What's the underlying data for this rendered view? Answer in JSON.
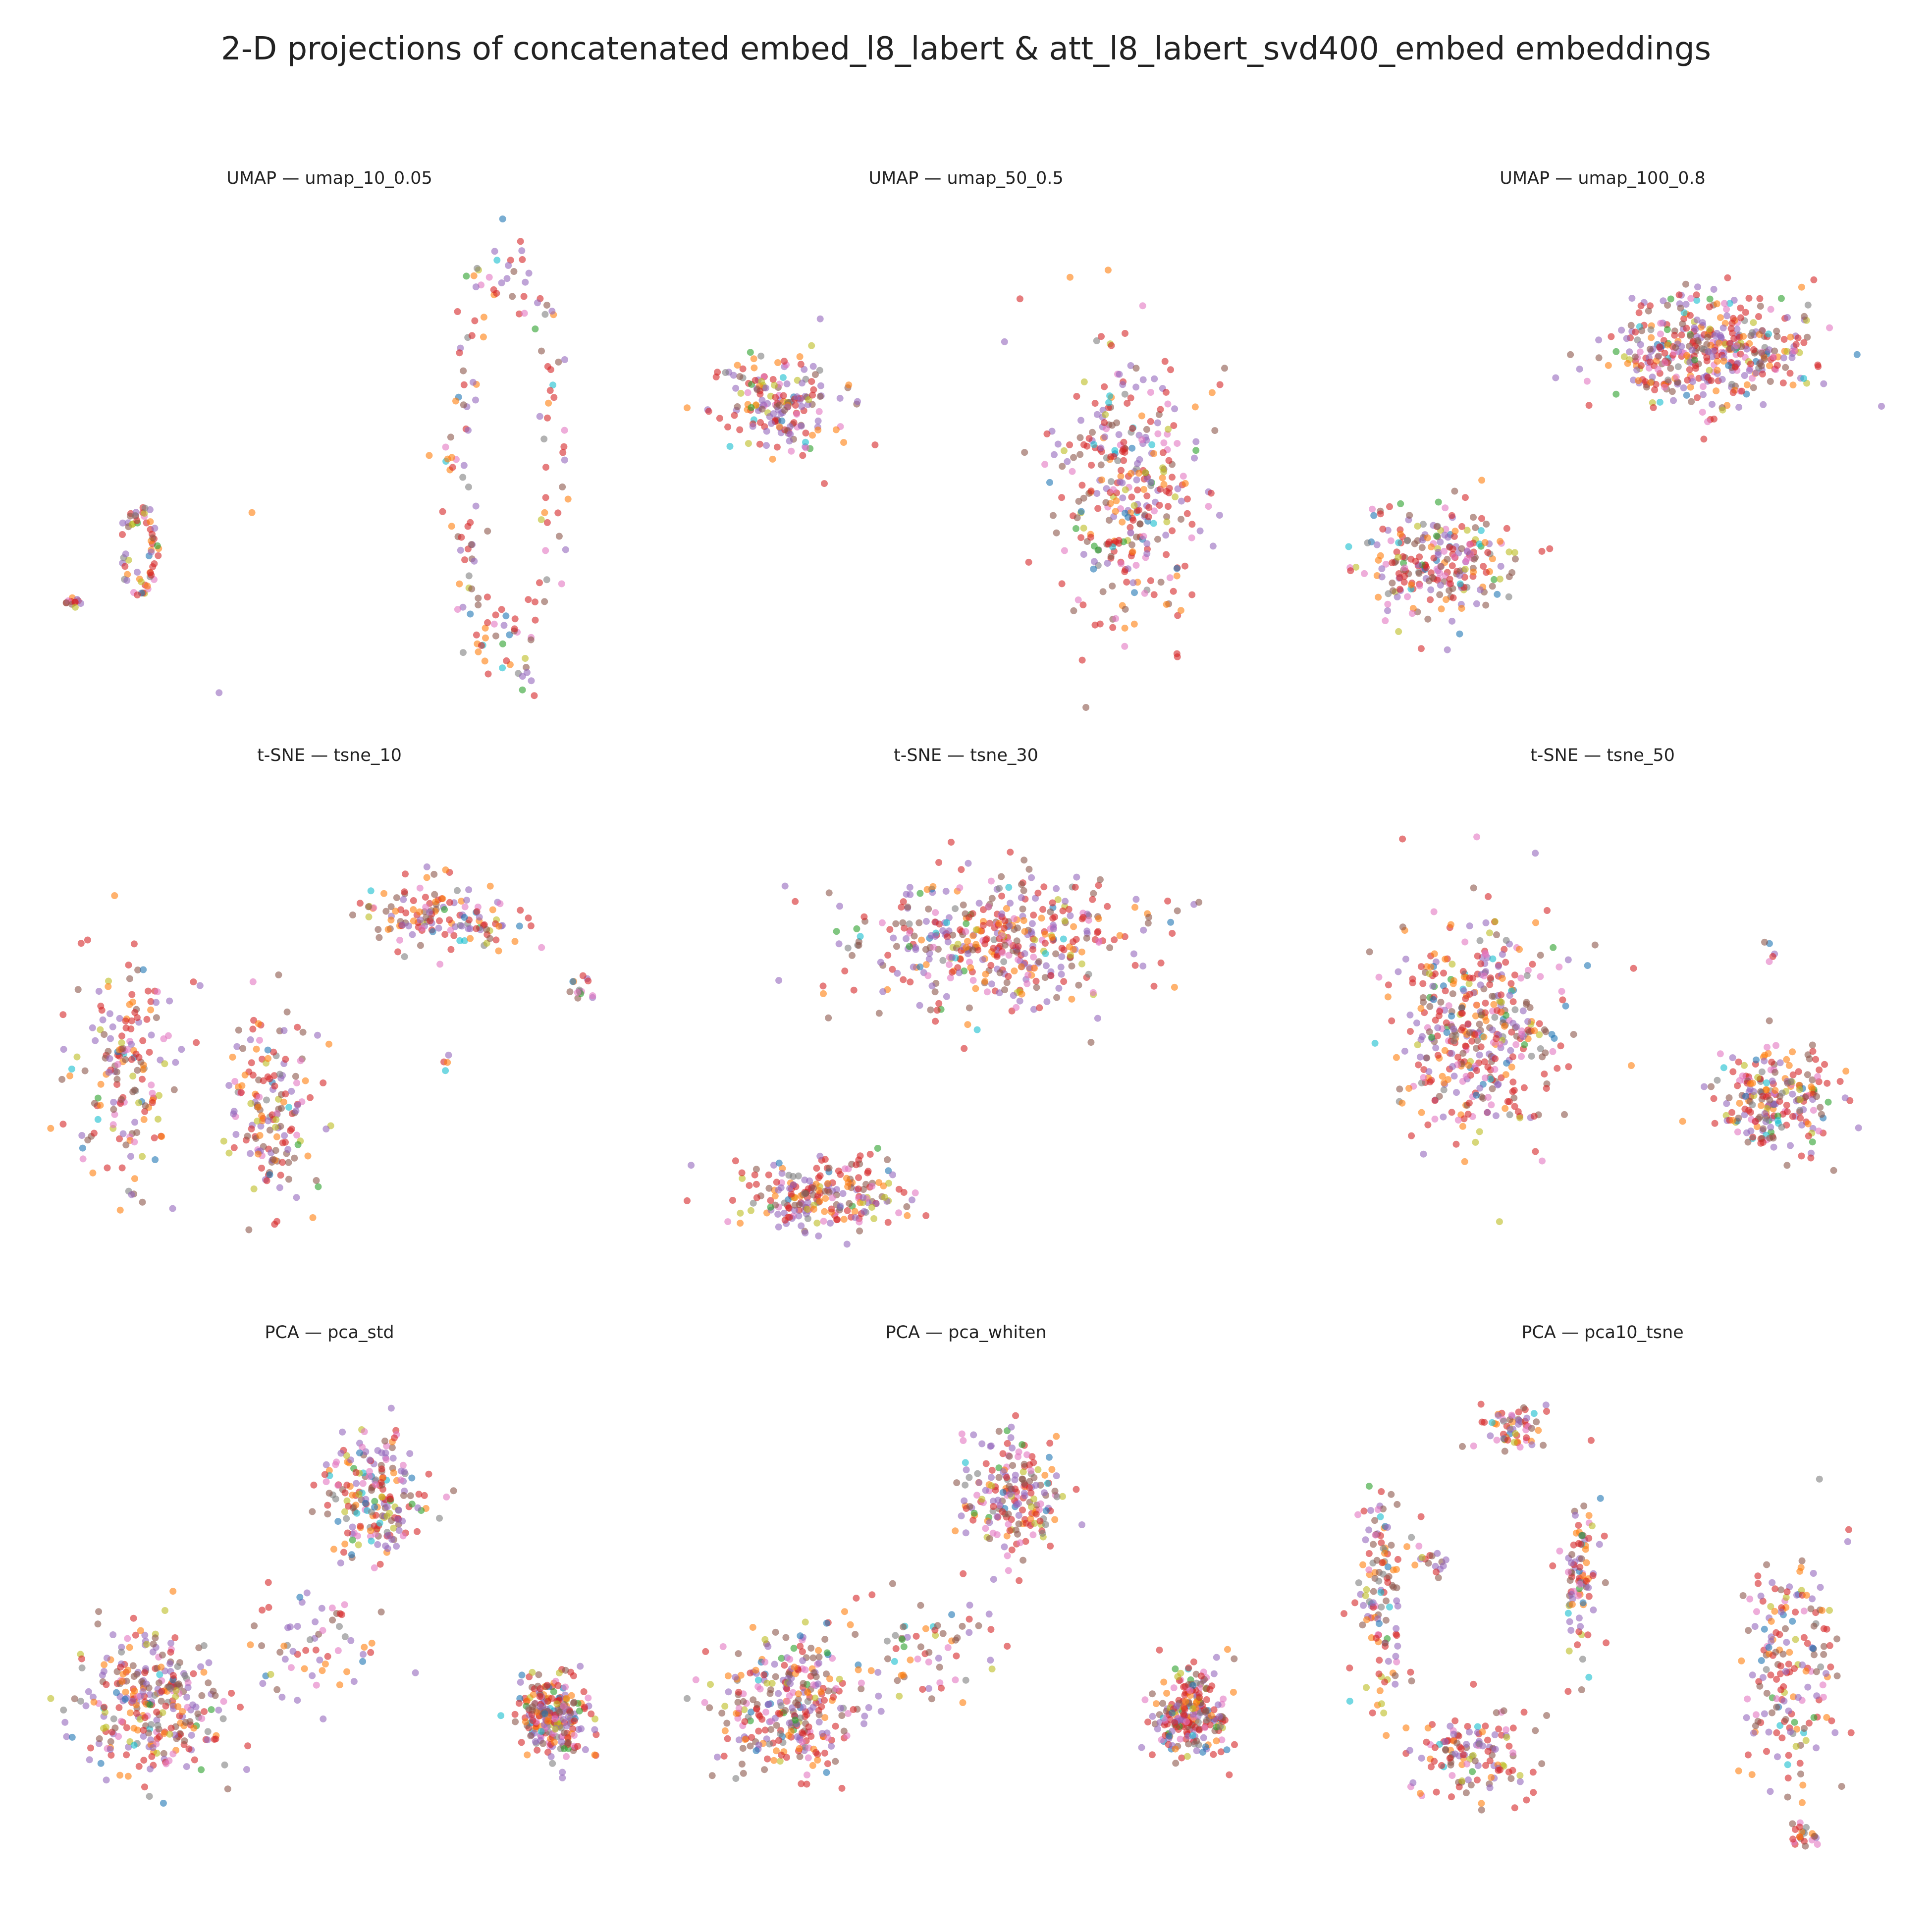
{
  "suptitle": "2-D projections of concatenated embed_l8_labert & att_l8_labert_svd400_embed embeddings",
  "palette": [
    "#1f77b4",
    "#ff7f0e",
    "#2ca02c",
    "#d62728",
    "#9467bd",
    "#8c564b",
    "#e377c2",
    "#7f7f7f",
    "#bcbd22",
    "#17becf"
  ],
  "chart_data": [
    {
      "type": "scatter",
      "title": "UMAP — umap_10_0.05",
      "axes_visible": false,
      "grid": false,
      "clusters": [
        {
          "cx": 0.16,
          "cy": 0.68,
          "sx": 0.03,
          "sy": 0.09,
          "n": 60,
          "shape": "ring"
        },
        {
          "cx": 0.04,
          "cy": 0.78,
          "sx": 0.015,
          "sy": 0.015,
          "n": 12,
          "shape": "blob"
        },
        {
          "cx": 0.82,
          "cy": 0.5,
          "sx": 0.1,
          "sy": 0.45,
          "n": 160,
          "shape": "ring"
        },
        {
          "cx": 0.36,
          "cy": 0.6,
          "sx": 0.005,
          "sy": 0.005,
          "n": 1,
          "shape": "blob"
        },
        {
          "cx": 0.3,
          "cy": 0.97,
          "sx": 0.005,
          "sy": 0.005,
          "n": 1,
          "shape": "blob"
        }
      ]
    },
    {
      "type": "scatter",
      "title": "UMAP — umap_50_0.5",
      "axes_visible": false,
      "grid": false,
      "clusters": [
        {
          "cx": 0.17,
          "cy": 0.38,
          "sx": 0.1,
          "sy": 0.09,
          "n": 180,
          "shape": "blob"
        },
        {
          "cx": 0.79,
          "cy": 0.55,
          "sx": 0.12,
          "sy": 0.25,
          "n": 340,
          "shape": "blob"
        }
      ]
    },
    {
      "type": "scatter",
      "title": "UMAP — umap_100_0.8",
      "axes_visible": false,
      "grid": false,
      "clusters": [
        {
          "cx": 0.7,
          "cy": 0.27,
          "sx": 0.16,
          "sy": 0.1,
          "n": 420,
          "shape": "blob"
        },
        {
          "cx": 0.2,
          "cy": 0.7,
          "sx": 0.12,
          "sy": 0.1,
          "n": 240,
          "shape": "blob"
        }
      ]
    },
    {
      "type": "scatter",
      "title": "t-SNE — tsne_10",
      "axes_visible": false,
      "grid": false,
      "clusters": [
        {
          "cx": 0.14,
          "cy": 0.55,
          "sx": 0.09,
          "sy": 0.22,
          "n": 170,
          "shape": "blob"
        },
        {
          "cx": 0.4,
          "cy": 0.63,
          "sx": 0.07,
          "sy": 0.2,
          "n": 160,
          "shape": "blob"
        },
        {
          "cx": 0.7,
          "cy": 0.25,
          "sx": 0.13,
          "sy": 0.08,
          "n": 140,
          "shape": "blob"
        },
        {
          "cx": 0.95,
          "cy": 0.39,
          "sx": 0.015,
          "sy": 0.03,
          "n": 14,
          "shape": "blob"
        },
        {
          "cx": 0.71,
          "cy": 0.55,
          "sx": 0.01,
          "sy": 0.02,
          "n": 4,
          "shape": "blob"
        }
      ]
    },
    {
      "type": "scatter",
      "title": "t-SNE — tsne_30",
      "axes_visible": false,
      "grid": false,
      "clusters": [
        {
          "cx": 0.55,
          "cy": 0.3,
          "sx": 0.24,
          "sy": 0.12,
          "n": 430,
          "shape": "blob"
        },
        {
          "cx": 0.24,
          "cy": 0.82,
          "sx": 0.14,
          "sy": 0.07,
          "n": 220,
          "shape": "blob"
        }
      ]
    },
    {
      "type": "scatter",
      "title": "t-SNE — tsne_50",
      "axes_visible": false,
      "grid": false,
      "clusters": [
        {
          "cx": 0.28,
          "cy": 0.48,
          "sx": 0.14,
          "sy": 0.2,
          "n": 420,
          "shape": "blob"
        },
        {
          "cx": 0.81,
          "cy": 0.62,
          "sx": 0.1,
          "sy": 0.1,
          "n": 220,
          "shape": "blob"
        },
        {
          "cx": 0.8,
          "cy": 0.33,
          "sx": 0.01,
          "sy": 0.03,
          "n": 5,
          "shape": "blob"
        }
      ]
    },
    {
      "type": "scatter",
      "title": "PCA — pca_std",
      "axes_visible": false,
      "grid": false,
      "clusters": [
        {
          "cx": 0.18,
          "cy": 0.68,
          "sx": 0.12,
          "sy": 0.14,
          "n": 300,
          "shape": "blob"
        },
        {
          "cx": 0.58,
          "cy": 0.25,
          "sx": 0.08,
          "sy": 0.12,
          "n": 200,
          "shape": "blob"
        },
        {
          "cx": 0.9,
          "cy": 0.7,
          "sx": 0.06,
          "sy": 0.08,
          "n": 230,
          "shape": "blob"
        },
        {
          "cx": 0.45,
          "cy": 0.55,
          "sx": 0.12,
          "sy": 0.1,
          "n": 60,
          "shape": "blob"
        }
      ]
    },
    {
      "type": "scatter",
      "title": "PCA — pca_whiten",
      "axes_visible": false,
      "grid": false,
      "clusters": [
        {
          "cx": 0.18,
          "cy": 0.68,
          "sx": 0.12,
          "sy": 0.14,
          "n": 300,
          "shape": "blob"
        },
        {
          "cx": 0.58,
          "cy": 0.25,
          "sx": 0.08,
          "sy": 0.12,
          "n": 200,
          "shape": "blob"
        },
        {
          "cx": 0.9,
          "cy": 0.7,
          "sx": 0.06,
          "sy": 0.08,
          "n": 230,
          "shape": "blob"
        },
        {
          "cx": 0.45,
          "cy": 0.55,
          "sx": 0.12,
          "sy": 0.1,
          "n": 60,
          "shape": "blob"
        }
      ]
    },
    {
      "type": "scatter",
      "title": "PCA — pca10_tsne",
      "axes_visible": false,
      "grid": false,
      "clusters": [
        {
          "cx": 0.1,
          "cy": 0.45,
          "sx": 0.04,
          "sy": 0.2,
          "n": 120,
          "shape": "blob"
        },
        {
          "cx": 0.27,
          "cy": 0.78,
          "sx": 0.1,
          "sy": 0.08,
          "n": 130,
          "shape": "blob"
        },
        {
          "cx": 0.34,
          "cy": 0.12,
          "sx": 0.05,
          "sy": 0.05,
          "n": 60,
          "shape": "blob"
        },
        {
          "cx": 0.46,
          "cy": 0.42,
          "sx": 0.03,
          "sy": 0.15,
          "n": 90,
          "shape": "blob"
        },
        {
          "cx": 0.84,
          "cy": 0.6,
          "sx": 0.08,
          "sy": 0.22,
          "n": 180,
          "shape": "blob"
        },
        {
          "cx": 0.86,
          "cy": 0.95,
          "sx": 0.03,
          "sy": 0.02,
          "n": 20,
          "shape": "blob"
        },
        {
          "cx": 0.19,
          "cy": 0.38,
          "sx": 0.04,
          "sy": 0.03,
          "n": 18,
          "shape": "blob"
        }
      ]
    }
  ]
}
